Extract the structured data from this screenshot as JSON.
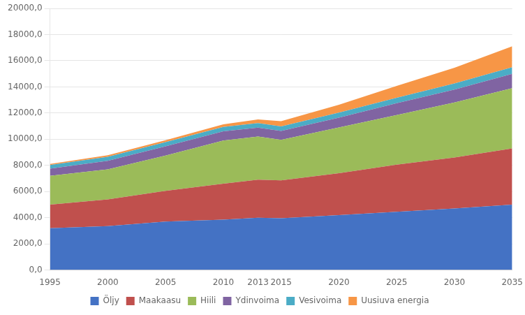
{
  "chart_data": {
    "type": "area",
    "stacked": true,
    "x": [
      1995,
      2000,
      2005,
      2010,
      2013,
      2015,
      2020,
      2025,
      2030,
      2035
    ],
    "series": [
      {
        "name": "Öljy",
        "color": "#4472C4",
        "values": [
          3200,
          3350,
          3700,
          3850,
          4000,
          3950,
          4200,
          4450,
          4700,
          5000
        ]
      },
      {
        "name": "Maakaasu",
        "color": "#C0504D",
        "values": [
          1800,
          2050,
          2350,
          2750,
          2900,
          2900,
          3200,
          3600,
          3900,
          4300
        ]
      },
      {
        "name": "Hiili",
        "color": "#9BBB59",
        "values": [
          2200,
          2300,
          2700,
          3300,
          3300,
          3100,
          3500,
          3800,
          4200,
          4600
        ]
      },
      {
        "name": "Ydinvoima",
        "color": "#8064A2",
        "values": [
          550,
          650,
          700,
          700,
          680,
          680,
          750,
          900,
          1000,
          1100
        ]
      },
      {
        "name": "Vesivoima",
        "color": "#4BACC6",
        "values": [
          280,
          300,
          320,
          340,
          350,
          350,
          380,
          420,
          460,
          500
        ]
      },
      {
        "name": "Uusiuva energia",
        "color": "#F79646",
        "values": [
          80,
          120,
          150,
          200,
          280,
          400,
          600,
          900,
          1200,
          1600
        ]
      }
    ],
    "xlim": [
      1995,
      2035
    ],
    "xticks": [
      1995,
      2000,
      2005,
      2010,
      2013,
      2015,
      2020,
      2025,
      2030,
      2035
    ],
    "ylim": [
      0,
      20000
    ],
    "yticks": [
      {
        "value": 0,
        "label": "0,0"
      },
      {
        "value": 2000,
        "label": "2000,0"
      },
      {
        "value": 4000,
        "label": "4000,0"
      },
      {
        "value": 6000,
        "label": "6000,0"
      },
      {
        "value": 8000,
        "label": "8000,0"
      },
      {
        "value": 10000,
        "label": "10000,0"
      },
      {
        "value": 12000,
        "label": "12000,0"
      },
      {
        "value": 14000,
        "label": "14000,0"
      },
      {
        "value": 16000,
        "label": "16000,0"
      },
      {
        "value": 18000,
        "label": "18000,0"
      },
      {
        "value": 20000,
        "label": "20000,0"
      }
    ],
    "grid": "y",
    "legend": "bottom"
  }
}
